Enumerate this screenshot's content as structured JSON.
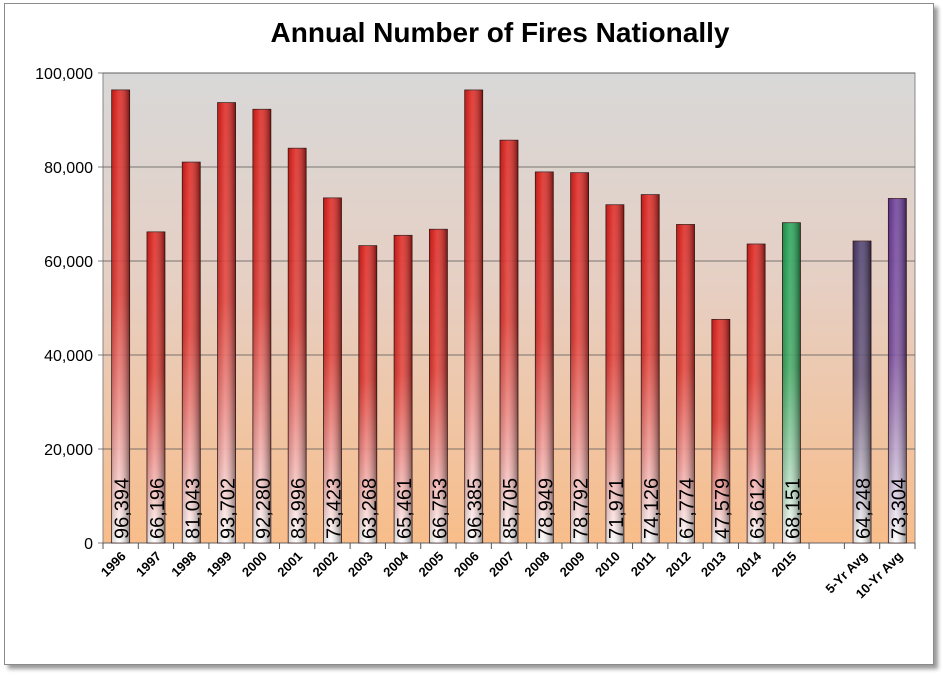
{
  "chart_data": {
    "type": "bar",
    "title": "Annual Number of Fires Nationally",
    "xlabel": "",
    "ylabel": "",
    "ylim": [
      0,
      100000
    ],
    "yticks": [
      0,
      20000,
      40000,
      60000,
      80000,
      100000
    ],
    "ytick_labels": [
      "0",
      "20,000",
      "40,000",
      "60,000",
      "80,000",
      "100,000"
    ],
    "grid": true,
    "categories": [
      "1996",
      "1997",
      "1998",
      "1999",
      "2000",
      "2001",
      "2002",
      "2003",
      "2004",
      "2005",
      "2006",
      "2007",
      "2008",
      "2009",
      "2010",
      "2011",
      "2012",
      "2013",
      "2014",
      "2015",
      "",
      "5-Yr Avg",
      "10-Yr Avg"
    ],
    "values": [
      96394,
      66196,
      81043,
      93702,
      92280,
      83996,
      73423,
      63268,
      65461,
      66753,
      96385,
      85705,
      78949,
      78792,
      71971,
      74126,
      67774,
      47579,
      63612,
      68151,
      null,
      64248,
      73304
    ],
    "value_labels": [
      "96,394",
      "66,196",
      "81,043",
      "93,702",
      "92,280",
      "83,996",
      "73,423",
      "63,268",
      "65,461",
      "66,753",
      "96,385",
      "85,705",
      "78,949",
      "78,792",
      "71,971",
      "74,126",
      "67,774",
      "47,579",
      "63,612",
      "68,151",
      "",
      "64,248",
      "73,304"
    ],
    "bar_colors": [
      "#e0201a",
      "#e0201a",
      "#e0201a",
      "#e0201a",
      "#e0201a",
      "#e0201a",
      "#e0201a",
      "#e0201a",
      "#e0201a",
      "#e0201a",
      "#e0201a",
      "#e0201a",
      "#e0201a",
      "#e0201a",
      "#e0201a",
      "#e0201a",
      "#e0201a",
      "#e0201a",
      "#e0201a",
      "#1fa352",
      "",
      "#4a3a6a",
      "#6a3a9a"
    ]
  }
}
